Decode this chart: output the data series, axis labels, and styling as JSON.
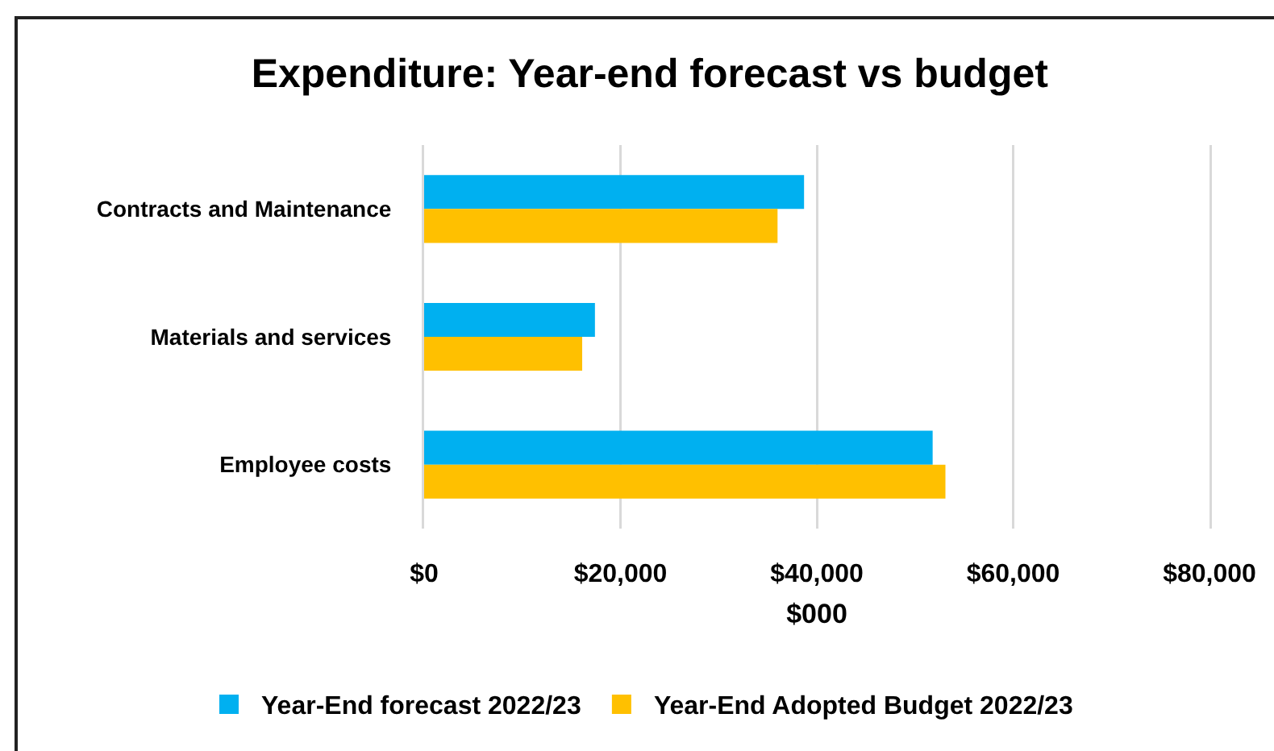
{
  "chart_data": {
    "type": "bar",
    "orientation": "horizontal",
    "title": "Expenditure: Year-end forecast vs budget",
    "xlabel": "$000",
    "categories": [
      "Contracts and Maintenance",
      "Materials and services",
      "Employee costs"
    ],
    "series": [
      {
        "name": "Year-End forecast 2022/23",
        "color": "#00b0f0",
        "values": [
          38700,
          17400,
          51800
        ]
      },
      {
        "name": "Year-End Adopted Budget 2022/23",
        "color": "#ffc000",
        "values": [
          36000,
          16100,
          53100
        ]
      }
    ],
    "xlim": [
      0,
      80000
    ],
    "xticks": [
      {
        "value": 0,
        "label": "$0"
      },
      {
        "value": 20000,
        "label": "$20,000"
      },
      {
        "value": 40000,
        "label": "$40,000"
      },
      {
        "value": 60000,
        "label": "$60,000"
      },
      {
        "value": 80000,
        "label": "$80,000"
      }
    ],
    "grid": "x",
    "legend": "bottom"
  }
}
